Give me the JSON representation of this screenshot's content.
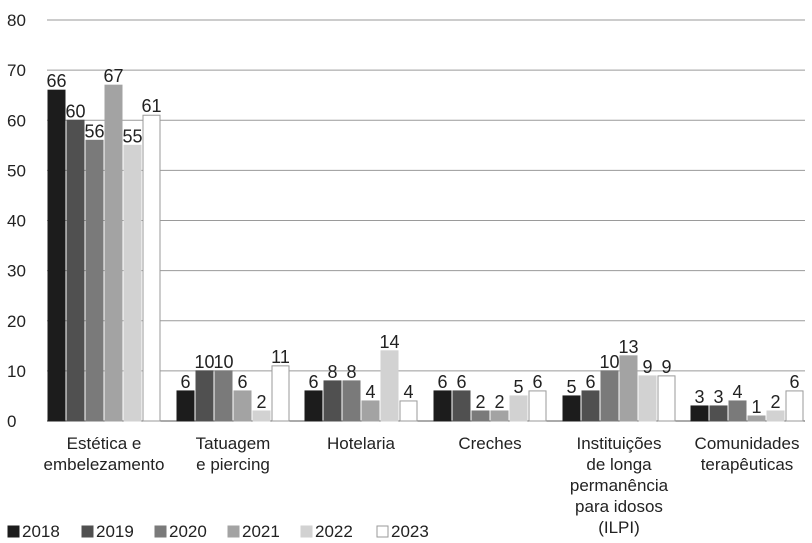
{
  "chart_data": {
    "type": "bar",
    "title": "",
    "xlabel": "",
    "ylabel": "",
    "ylim": [
      0,
      80
    ],
    "yticks": [
      0,
      10,
      20,
      30,
      40,
      50,
      60,
      70,
      80
    ],
    "grid": true,
    "legend_position": "bottom-left",
    "categories": [
      [
        "Estética e",
        "embelezamento"
      ],
      [
        "Tatuagem",
        "e piercing"
      ],
      [
        "Hotelaria"
      ],
      [
        "Creches"
      ],
      [
        "Instituições",
        "de longa",
        "permanência",
        "para idosos",
        "(ILPI)"
      ],
      [
        "Comunidades",
        "terapêuticas"
      ]
    ],
    "series": [
      {
        "name": "2018",
        "color": "#1c1c1c",
        "stroke": "#1c1c1c",
        "values": [
          66,
          6,
          6,
          6,
          5,
          3
        ]
      },
      {
        "name": "2019",
        "color": "#505050",
        "stroke": "#505050",
        "values": [
          60,
          10,
          8,
          6,
          6,
          3
        ]
      },
      {
        "name": "2020",
        "color": "#7a7a7a",
        "stroke": "#7a7a7a",
        "values": [
          56,
          10,
          8,
          2,
          10,
          4
        ]
      },
      {
        "name": "2021",
        "color": "#a3a3a3",
        "stroke": "#a3a3a3",
        "values": [
          67,
          6,
          4,
          2,
          13,
          1
        ]
      },
      {
        "name": "2022",
        "color": "#d2d2d2",
        "stroke": "#d2d2d2",
        "values": [
          55,
          2,
          14,
          5,
          9,
          2
        ]
      },
      {
        "name": "2023",
        "color": "#ffffff",
        "stroke": "#9a9a9a",
        "values": [
          61,
          11,
          4,
          6,
          9,
          6
        ]
      }
    ]
  }
}
